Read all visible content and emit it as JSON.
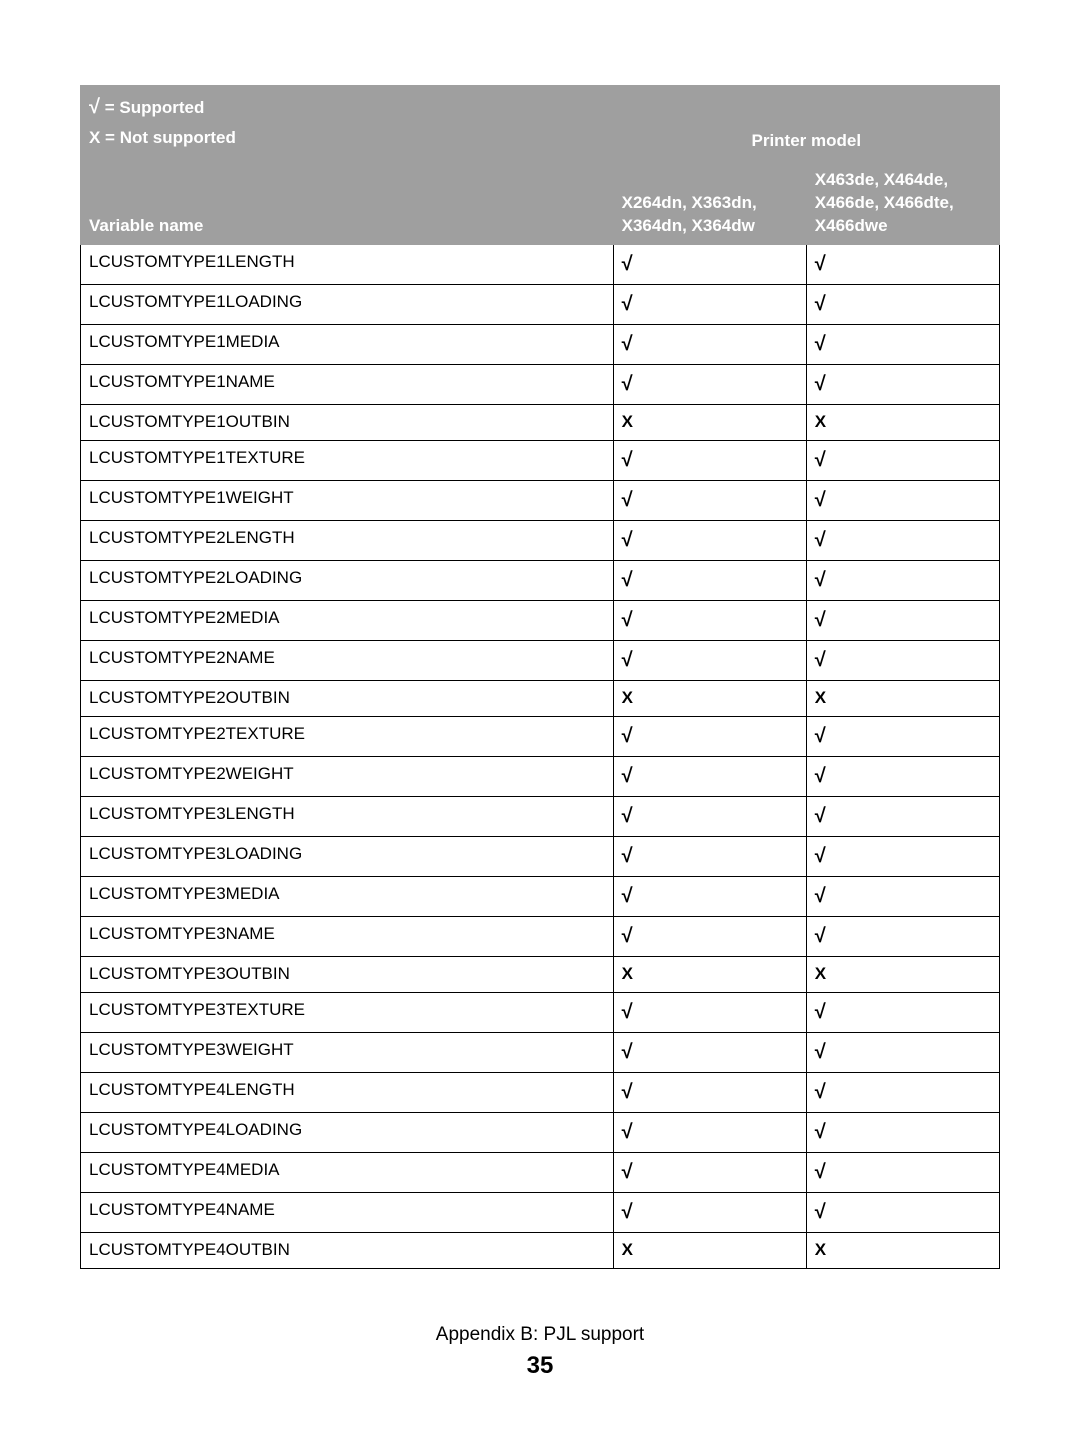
{
  "header": {
    "legend_supported_symbol": "√",
    "legend_supported_text": " = Supported",
    "legend_not_supported": "X = Not supported",
    "printer_model_label": "Printer model",
    "col_variable_name": "Variable name",
    "col_model_a": "X264dn, X363dn, X364dn, X364dw",
    "col_model_b": "X463de, X464de, X466de, X466dte, X466dwe"
  },
  "symbols": {
    "yes": "√",
    "no": "X"
  },
  "rows": [
    {
      "name": "LCUSTOMTYPE1LENGTH",
      "a": "yes",
      "b": "yes"
    },
    {
      "name": "LCUSTOMTYPE1LOADING",
      "a": "yes",
      "b": "yes"
    },
    {
      "name": "LCUSTOMTYPE1MEDIA",
      "a": "yes",
      "b": "yes"
    },
    {
      "name": "LCUSTOMTYPE1NAME",
      "a": "yes",
      "b": "yes"
    },
    {
      "name": "LCUSTOMTYPE1OUTBIN",
      "a": "no",
      "b": "no"
    },
    {
      "name": "LCUSTOMTYPE1TEXTURE",
      "a": "yes",
      "b": "yes"
    },
    {
      "name": "LCUSTOMTYPE1WEIGHT",
      "a": "yes",
      "b": "yes"
    },
    {
      "name": "LCUSTOMTYPE2LENGTH",
      "a": "yes",
      "b": "yes"
    },
    {
      "name": "LCUSTOMTYPE2LOADING",
      "a": "yes",
      "b": "yes"
    },
    {
      "name": "LCUSTOMTYPE2MEDIA",
      "a": "yes",
      "b": "yes"
    },
    {
      "name": "LCUSTOMTYPE2NAME",
      "a": "yes",
      "b": "yes"
    },
    {
      "name": "LCUSTOMTYPE2OUTBIN",
      "a": "no",
      "b": "no"
    },
    {
      "name": "LCUSTOMTYPE2TEXTURE",
      "a": "yes",
      "b": "yes"
    },
    {
      "name": "LCUSTOMTYPE2WEIGHT",
      "a": "yes",
      "b": "yes"
    },
    {
      "name": "LCUSTOMTYPE3LENGTH",
      "a": "yes",
      "b": "yes"
    },
    {
      "name": "LCUSTOMTYPE3LOADING",
      "a": "yes",
      "b": "yes"
    },
    {
      "name": "LCUSTOMTYPE3MEDIA",
      "a": "yes",
      "b": "yes"
    },
    {
      "name": "LCUSTOMTYPE3NAME",
      "a": "yes",
      "b": "yes"
    },
    {
      "name": "LCUSTOMTYPE3OUTBIN",
      "a": "no",
      "b": "no"
    },
    {
      "name": "LCUSTOMTYPE3TEXTURE",
      "a": "yes",
      "b": "yes"
    },
    {
      "name": "LCUSTOMTYPE3WEIGHT",
      "a": "yes",
      "b": "yes"
    },
    {
      "name": "LCUSTOMTYPE4LENGTH",
      "a": "yes",
      "b": "yes"
    },
    {
      "name": "LCUSTOMTYPE4LOADING",
      "a": "yes",
      "b": "yes"
    },
    {
      "name": "LCUSTOMTYPE4MEDIA",
      "a": "yes",
      "b": "yes"
    },
    {
      "name": "LCUSTOMTYPE4NAME",
      "a": "yes",
      "b": "yes"
    },
    {
      "name": "LCUSTOMTYPE4OUTBIN",
      "a": "no",
      "b": "no"
    }
  ],
  "footer": {
    "appendix": "Appendix B: PJL support",
    "page_number": "35"
  },
  "style": {
    "header_bg": "#9f9f9f",
    "header_fg": "#ffffff",
    "border_color": "#000000",
    "body_font_size_pt": 13,
    "check_font_size_pt": 15
  }
}
